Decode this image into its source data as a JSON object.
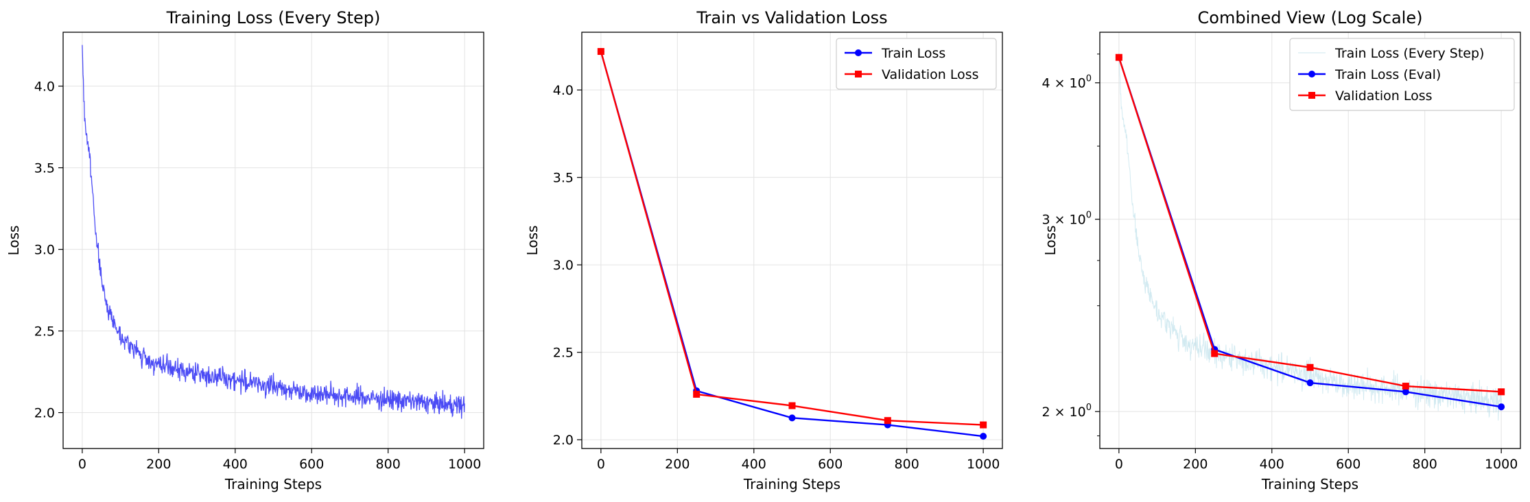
{
  "charts": [
    {
      "title": "Training Loss (Every Step)",
      "xlabel": "Training Steps",
      "ylabel": "Loss",
      "x_ticks": [
        "0",
        "200",
        "400",
        "600",
        "800",
        "1000"
      ],
      "y_ticks": [
        "2.0",
        "2.5",
        "3.0",
        "3.5",
        "4.0"
      ],
      "legend": []
    },
    {
      "title": "Train vs Validation Loss",
      "xlabel": "Training Steps",
      "ylabel": "Loss",
      "x_ticks": [
        "0",
        "200",
        "400",
        "600",
        "800",
        "1000"
      ],
      "y_ticks": [
        "2.0",
        "2.5",
        "3.0",
        "3.5",
        "4.0"
      ],
      "legend": [
        "Train Loss",
        "Validation Loss"
      ]
    },
    {
      "title": "Combined View (Log Scale)",
      "xlabel": "Training Steps",
      "ylabel": "Loss",
      "x_ticks": [
        "0",
        "200",
        "400",
        "600",
        "800",
        "1000"
      ],
      "y_ticks": [
        {
          "base": "2",
          "sep": " × ",
          "pow": "10",
          "exp": "0"
        },
        {
          "base": "3",
          "sep": " × ",
          "pow": "10",
          "exp": "0"
        },
        {
          "base": "4",
          "sep": " × ",
          "pow": "10",
          "exp": "0"
        }
      ],
      "legend": [
        "Train Loss (Every Step)",
        "Train Loss (Eval)",
        "Validation Loss"
      ]
    }
  ],
  "chart_data": [
    {
      "type": "line",
      "title": "Training Loss (Every Step)",
      "xlabel": "Training Steps",
      "ylabel": "Loss",
      "xlim": [
        -50,
        1050
      ],
      "ylim": [
        1.78,
        4.33
      ],
      "grid": true,
      "series": [
        {
          "color": "#4b4bf5",
          "style": "thin noisy line, one point per step",
          "x": [
            0,
            2,
            5,
            10,
            15,
            20,
            25,
            30,
            35,
            40,
            45,
            50,
            55,
            60,
            70,
            80,
            90,
            100,
            120,
            140,
            160,
            180,
            200,
            250,
            300,
            350,
            400,
            450,
            500,
            550,
            600,
            650,
            700,
            750,
            800,
            850,
            900,
            950,
            1000
          ],
          "values": [
            4.23,
            4.1,
            3.85,
            3.72,
            3.65,
            3.55,
            3.4,
            3.28,
            3.12,
            3.0,
            2.92,
            2.82,
            2.75,
            2.7,
            2.62,
            2.57,
            2.52,
            2.48,
            2.42,
            2.38,
            2.34,
            2.31,
            2.29,
            2.26,
            2.24,
            2.22,
            2.2,
            2.18,
            2.16,
            2.14,
            2.12,
            2.11,
            2.1,
            2.09,
            2.08,
            2.07,
            2.06,
            2.05,
            2.04
          ]
        }
      ]
    },
    {
      "type": "line",
      "title": "Train vs Validation Loss",
      "xlabel": "Training Steps",
      "ylabel": "Loss",
      "xlim": [
        -50,
        1050
      ],
      "ylim": [
        1.95,
        4.33
      ],
      "grid": true,
      "legend_position": "top-right",
      "x": [
        0,
        250,
        500,
        750,
        1000
      ],
      "series": [
        {
          "name": "Train Loss",
          "color": "#0000ff",
          "marker": "circle",
          "values": [
            4.22,
            2.28,
            2.125,
            2.085,
            2.02
          ]
        },
        {
          "name": "Validation Loss",
          "color": "#ff0000",
          "marker": "square",
          "values": [
            4.22,
            2.26,
            2.195,
            2.11,
            2.085
          ]
        }
      ]
    },
    {
      "type": "line",
      "title": "Combined View (Log Scale)",
      "xlabel": "Training Steps",
      "ylabel": "Loss",
      "yscale": "log",
      "xlim": [
        -50,
        1050
      ],
      "ylim": [
        1.85,
        4.45
      ],
      "grid": true,
      "legend_position": "top-right",
      "series": [
        {
          "name": "Train Loss (Every Step)",
          "color": "#add8e6",
          "style": "thin faint noisy line",
          "x": [
            0,
            2,
            5,
            10,
            15,
            20,
            25,
            30,
            35,
            40,
            45,
            50,
            55,
            60,
            70,
            80,
            90,
            100,
            120,
            140,
            160,
            180,
            200,
            250,
            300,
            350,
            400,
            450,
            500,
            550,
            600,
            650,
            700,
            750,
            800,
            850,
            900,
            950,
            1000
          ],
          "values": [
            4.23,
            4.1,
            3.85,
            3.72,
            3.65,
            3.55,
            3.4,
            3.28,
            3.12,
            3.0,
            2.92,
            2.82,
            2.75,
            2.7,
            2.62,
            2.57,
            2.52,
            2.48,
            2.42,
            2.38,
            2.34,
            2.31,
            2.29,
            2.26,
            2.24,
            2.22,
            2.2,
            2.18,
            2.16,
            2.14,
            2.12,
            2.11,
            2.1,
            2.09,
            2.08,
            2.07,
            2.06,
            2.05,
            2.04
          ]
        },
        {
          "name": "Train Loss (Eval)",
          "color": "#0000ff",
          "marker": "circle",
          "x": [
            0,
            250,
            500,
            750,
            1000
          ],
          "values": [
            4.22,
            2.28,
            2.125,
            2.085,
            2.02
          ]
        },
        {
          "name": "Validation Loss",
          "color": "#ff0000",
          "marker": "square",
          "x": [
            0,
            250,
            500,
            750,
            1000
          ],
          "values": [
            4.22,
            2.26,
            2.195,
            2.11,
            2.085
          ]
        }
      ]
    }
  ]
}
